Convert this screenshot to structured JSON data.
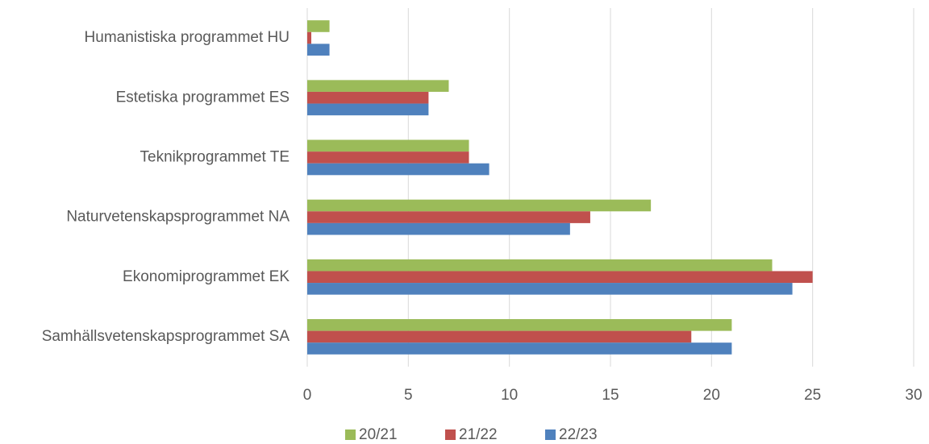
{
  "chart_data": {
    "type": "bar",
    "orientation": "horizontal",
    "categories": [
      "Humanistiska programmet HU",
      "Estetiska programmet ES",
      "Teknikprogrammet TE",
      "Naturvetenskapsprogrammet NA",
      "Ekonomiprogrammet EK",
      "Samhällsvetenskapsprogrammet SA"
    ],
    "series": [
      {
        "name": "20/21",
        "color": "#9bbb59",
        "values": [
          1.1,
          7,
          8,
          17,
          23,
          21
        ]
      },
      {
        "name": "21/22",
        "color": "#c0504d",
        "values": [
          0.2,
          6,
          8,
          14,
          25,
          19
        ]
      },
      {
        "name": "22/23",
        "color": "#4f81bd",
        "values": [
          1.1,
          6,
          9,
          13,
          24,
          21
        ]
      }
    ],
    "xlim": [
      0,
      30
    ],
    "xticks": [
      0,
      5,
      10,
      15,
      20,
      25,
      30
    ],
    "grid": true,
    "legend": "bottom"
  }
}
